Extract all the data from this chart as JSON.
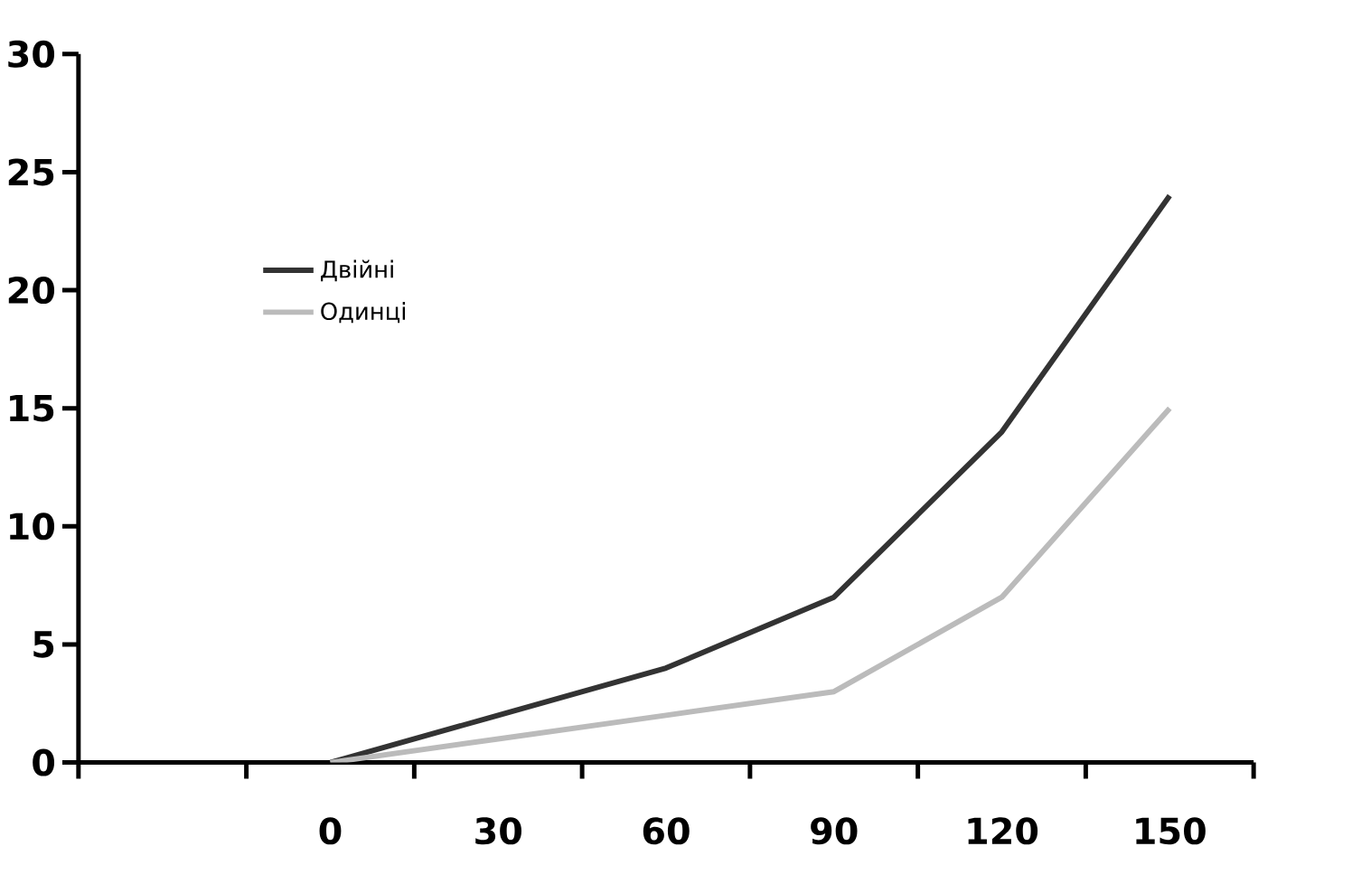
{
  "chart_data": {
    "type": "line",
    "categories": [
      null,
      "0",
      "30",
      "60",
      "90",
      "120",
      "150"
    ],
    "series": [
      {
        "name": "Двійні",
        "color": "#333333",
        "values": [
          null,
          0,
          2,
          4,
          7,
          14,
          24
        ]
      },
      {
        "name": "Одинці",
        "color": "#bbbbbb",
        "values": [
          null,
          0,
          1,
          2,
          3,
          7,
          15
        ]
      }
    ],
    "ylim": [
      0,
      30
    ],
    "yticks": [
      0,
      5,
      10,
      15,
      20,
      25,
      30
    ],
    "grid": false,
    "legend": "top left",
    "marker": "none",
    "line_style": "solid"
  }
}
